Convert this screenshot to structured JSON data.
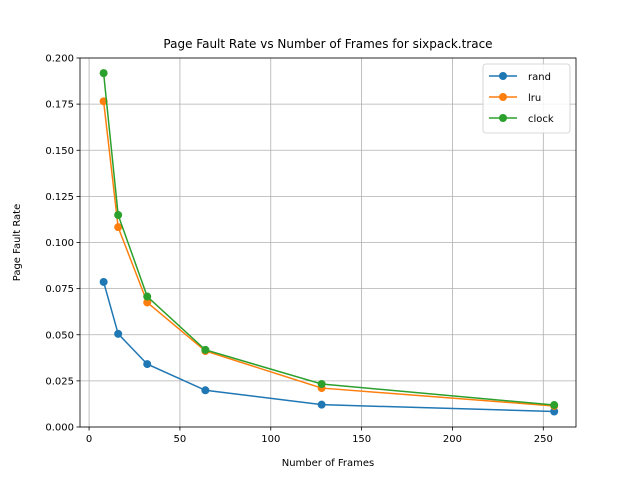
{
  "chart_data": {
    "type": "line",
    "title": "Page Fault Rate vs Number of Frames for sixpack.trace",
    "xlabel": "Number of Frames",
    "ylabel": "Page Fault Rate",
    "xlim": [
      -5,
      268
    ],
    "ylim": [
      0,
      0.2
    ],
    "xticks": [
      0,
      50,
      100,
      150,
      200,
      250
    ],
    "yticks": [
      0.0,
      0.025,
      0.05,
      0.075,
      0.1,
      0.125,
      0.15,
      0.175,
      0.2
    ],
    "xtick_labels": [
      "0",
      "50",
      "100",
      "150",
      "200",
      "250"
    ],
    "ytick_labels": [
      "0.000",
      "0.025",
      "0.050",
      "0.075",
      "0.100",
      "0.125",
      "0.150",
      "0.175",
      "0.200"
    ],
    "grid": true,
    "legend_position": "top-right",
    "x": [
      8,
      16,
      32,
      64,
      128,
      256
    ],
    "series": [
      {
        "name": "rand",
        "color": "#1f77b4",
        "values": [
          0.0786,
          0.0505,
          0.0341,
          0.0199,
          0.0121,
          0.0084
        ]
      },
      {
        "name": "lru",
        "color": "#ff7f0e",
        "values": [
          0.1765,
          0.1083,
          0.0675,
          0.0412,
          0.0211,
          0.0114
        ]
      },
      {
        "name": "clock",
        "color": "#2ca02c",
        "values": [
          0.1918,
          0.1149,
          0.0707,
          0.0418,
          0.0233,
          0.0119
        ]
      }
    ]
  }
}
